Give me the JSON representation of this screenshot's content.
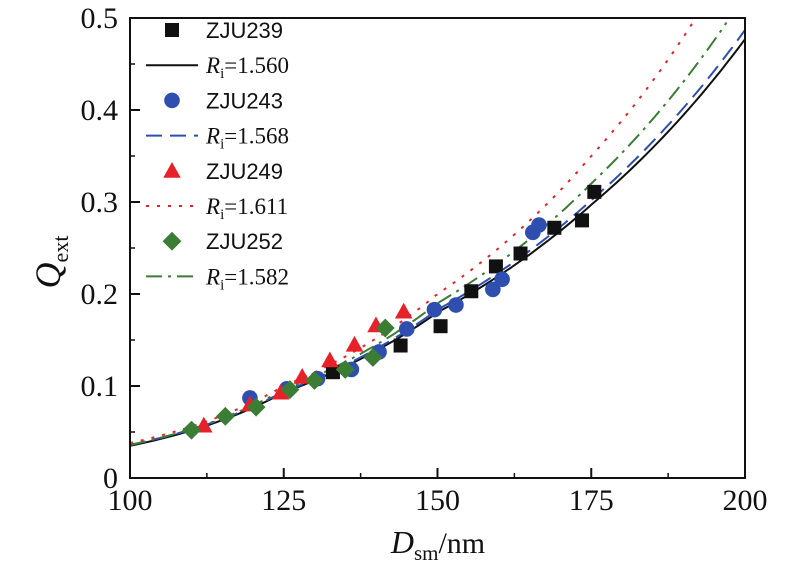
{
  "chart_data": {
    "type": "scatter",
    "xlabel": {
      "main": "D",
      "sub": "sm",
      "unit": "/nm"
    },
    "ylabel": {
      "main": "Q",
      "sub": "ext"
    },
    "xlim": [
      100,
      200
    ],
    "ylim": [
      0,
      0.5
    ],
    "xticks": [
      "100",
      "125",
      "150",
      "175",
      "200"
    ],
    "yticks": [
      "0",
      "0.1",
      "0.2",
      "0.3",
      "0.4",
      "0.5"
    ],
    "grid": false,
    "legend_position": "top-left",
    "series": [
      {
        "name": "ZJU239",
        "marker": "square",
        "color": "#111111",
        "points": [
          [
            133,
            0.115
          ],
          [
            144,
            0.144
          ],
          [
            150.5,
            0.165
          ],
          [
            155.5,
            0.203
          ],
          [
            159.5,
            0.23
          ],
          [
            163.5,
            0.244
          ],
          [
            169,
            0.272
          ],
          [
            173.5,
            0.28
          ],
          [
            175.5,
            0.311
          ]
        ]
      },
      {
        "name": "ZJU243",
        "marker": "circle",
        "color": "#2f4fb0",
        "points": [
          [
            119.5,
            0.087
          ],
          [
            125.5,
            0.097
          ],
          [
            130.5,
            0.108
          ],
          [
            136,
            0.118
          ],
          [
            140.5,
            0.137
          ],
          [
            145,
            0.162
          ],
          [
            149.5,
            0.183
          ],
          [
            153,
            0.188
          ],
          [
            159,
            0.205
          ],
          [
            160.5,
            0.216
          ],
          [
            165.5,
            0.267
          ],
          [
            166.5,
            0.275
          ]
        ]
      },
      {
        "name": "ZJU249",
        "marker": "triangle",
        "color": "#e8202a",
        "points": [
          [
            112,
            0.057
          ],
          [
            119.5,
            0.08
          ],
          [
            124.5,
            0.093
          ],
          [
            128,
            0.11
          ],
          [
            132.5,
            0.128
          ],
          [
            136.5,
            0.145
          ],
          [
            140,
            0.166
          ],
          [
            144.5,
            0.181
          ]
        ]
      },
      {
        "name": "ZJU252",
        "marker": "diamond",
        "color": "#3c7d35",
        "points": [
          [
            110,
            0.052
          ],
          [
            115.5,
            0.067
          ],
          [
            120.5,
            0.077
          ],
          [
            126,
            0.096
          ],
          [
            130,
            0.106
          ],
          [
            135,
            0.118
          ],
          [
            139.5,
            0.131
          ],
          [
            141.5,
            0.163
          ]
        ]
      }
    ],
    "curves": [
      {
        "label_prefix": "R",
        "label_sub": "i",
        "label_value": "=1.560",
        "style": "solid",
        "color": "#111111",
        "x": [
          100,
          125,
          150,
          175,
          200
        ],
        "y": [
          0.035,
          0.093,
          0.18,
          0.297,
          0.477
        ]
      },
      {
        "label_prefix": "R",
        "label_sub": "i",
        "label_value": "=1.568",
        "style": "dash",
        "color": "#2f4fb0",
        "x": [
          100,
          125,
          150,
          175,
          200
        ],
        "y": [
          0.036,
          0.094,
          0.183,
          0.302,
          0.487
        ]
      },
      {
        "label_prefix": "R",
        "label_sub": "i",
        "label_value": "=1.611",
        "style": "dot",
        "color": "#e8202a",
        "x": [
          100,
          125,
          150,
          175,
          192
        ],
        "y": [
          0.038,
          0.1,
          0.2,
          0.35,
          0.5
        ]
      },
      {
        "label_prefix": "R",
        "label_sub": "i",
        "label_value": "=1.582",
        "style": "dashdot",
        "color": "#3c7d35",
        "x": [
          100,
          125,
          150,
          175,
          197
        ],
        "y": [
          0.036,
          0.096,
          0.19,
          0.32,
          0.495
        ]
      }
    ],
    "legend_order": [
      "s0",
      "c0",
      "s1",
      "c1",
      "s2",
      "c2",
      "s3",
      "c3"
    ]
  }
}
